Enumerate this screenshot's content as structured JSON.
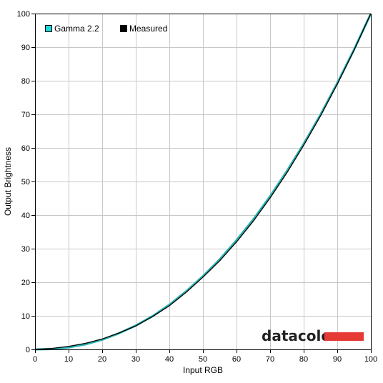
{
  "chart_data": {
    "type": "line",
    "xlabel": "Input RGB",
    "ylabel": "Output Brightness",
    "xlim": [
      0,
      100
    ],
    "ylim": [
      0,
      100
    ],
    "x_ticks": [
      0,
      10,
      20,
      30,
      40,
      50,
      60,
      70,
      80,
      90,
      100
    ],
    "y_ticks": [
      0,
      10,
      20,
      30,
      40,
      50,
      60,
      70,
      80,
      90,
      100
    ],
    "grid": true,
    "legend_position": "top-left",
    "series": [
      {
        "name": "Gamma 2.2",
        "color": "#2ab0b0",
        "x": [
          0,
          5,
          10,
          15,
          20,
          25,
          30,
          35,
          40,
          45,
          50,
          55,
          60,
          65,
          70,
          75,
          80,
          85,
          90,
          95,
          100
        ],
        "y": [
          0,
          0.1,
          0.6,
          1.5,
          2.9,
          4.8,
          7.1,
          9.9,
          13.3,
          17.3,
          21.8,
          26.8,
          32.5,
          38.7,
          45.6,
          53.1,
          61.2,
          69.9,
          79.3,
          89.3,
          100
        ]
      },
      {
        "name": "Measured",
        "color": "#000000",
        "x": [
          0,
          5,
          10,
          15,
          20,
          25,
          30,
          35,
          40,
          45,
          50,
          55,
          60,
          65,
          70,
          75,
          80,
          85,
          90,
          95,
          100
        ],
        "y": [
          0,
          0.3,
          0.9,
          1.8,
          3.1,
          4.9,
          7.0,
          9.8,
          13.0,
          17.0,
          21.5,
          26.4,
          32.0,
          38.2,
          45.1,
          52.6,
          60.8,
          69.5,
          79.0,
          89.1,
          100
        ]
      }
    ],
    "watermark": {
      "text": "datacolor",
      "bar_color": "#e63a35"
    }
  }
}
